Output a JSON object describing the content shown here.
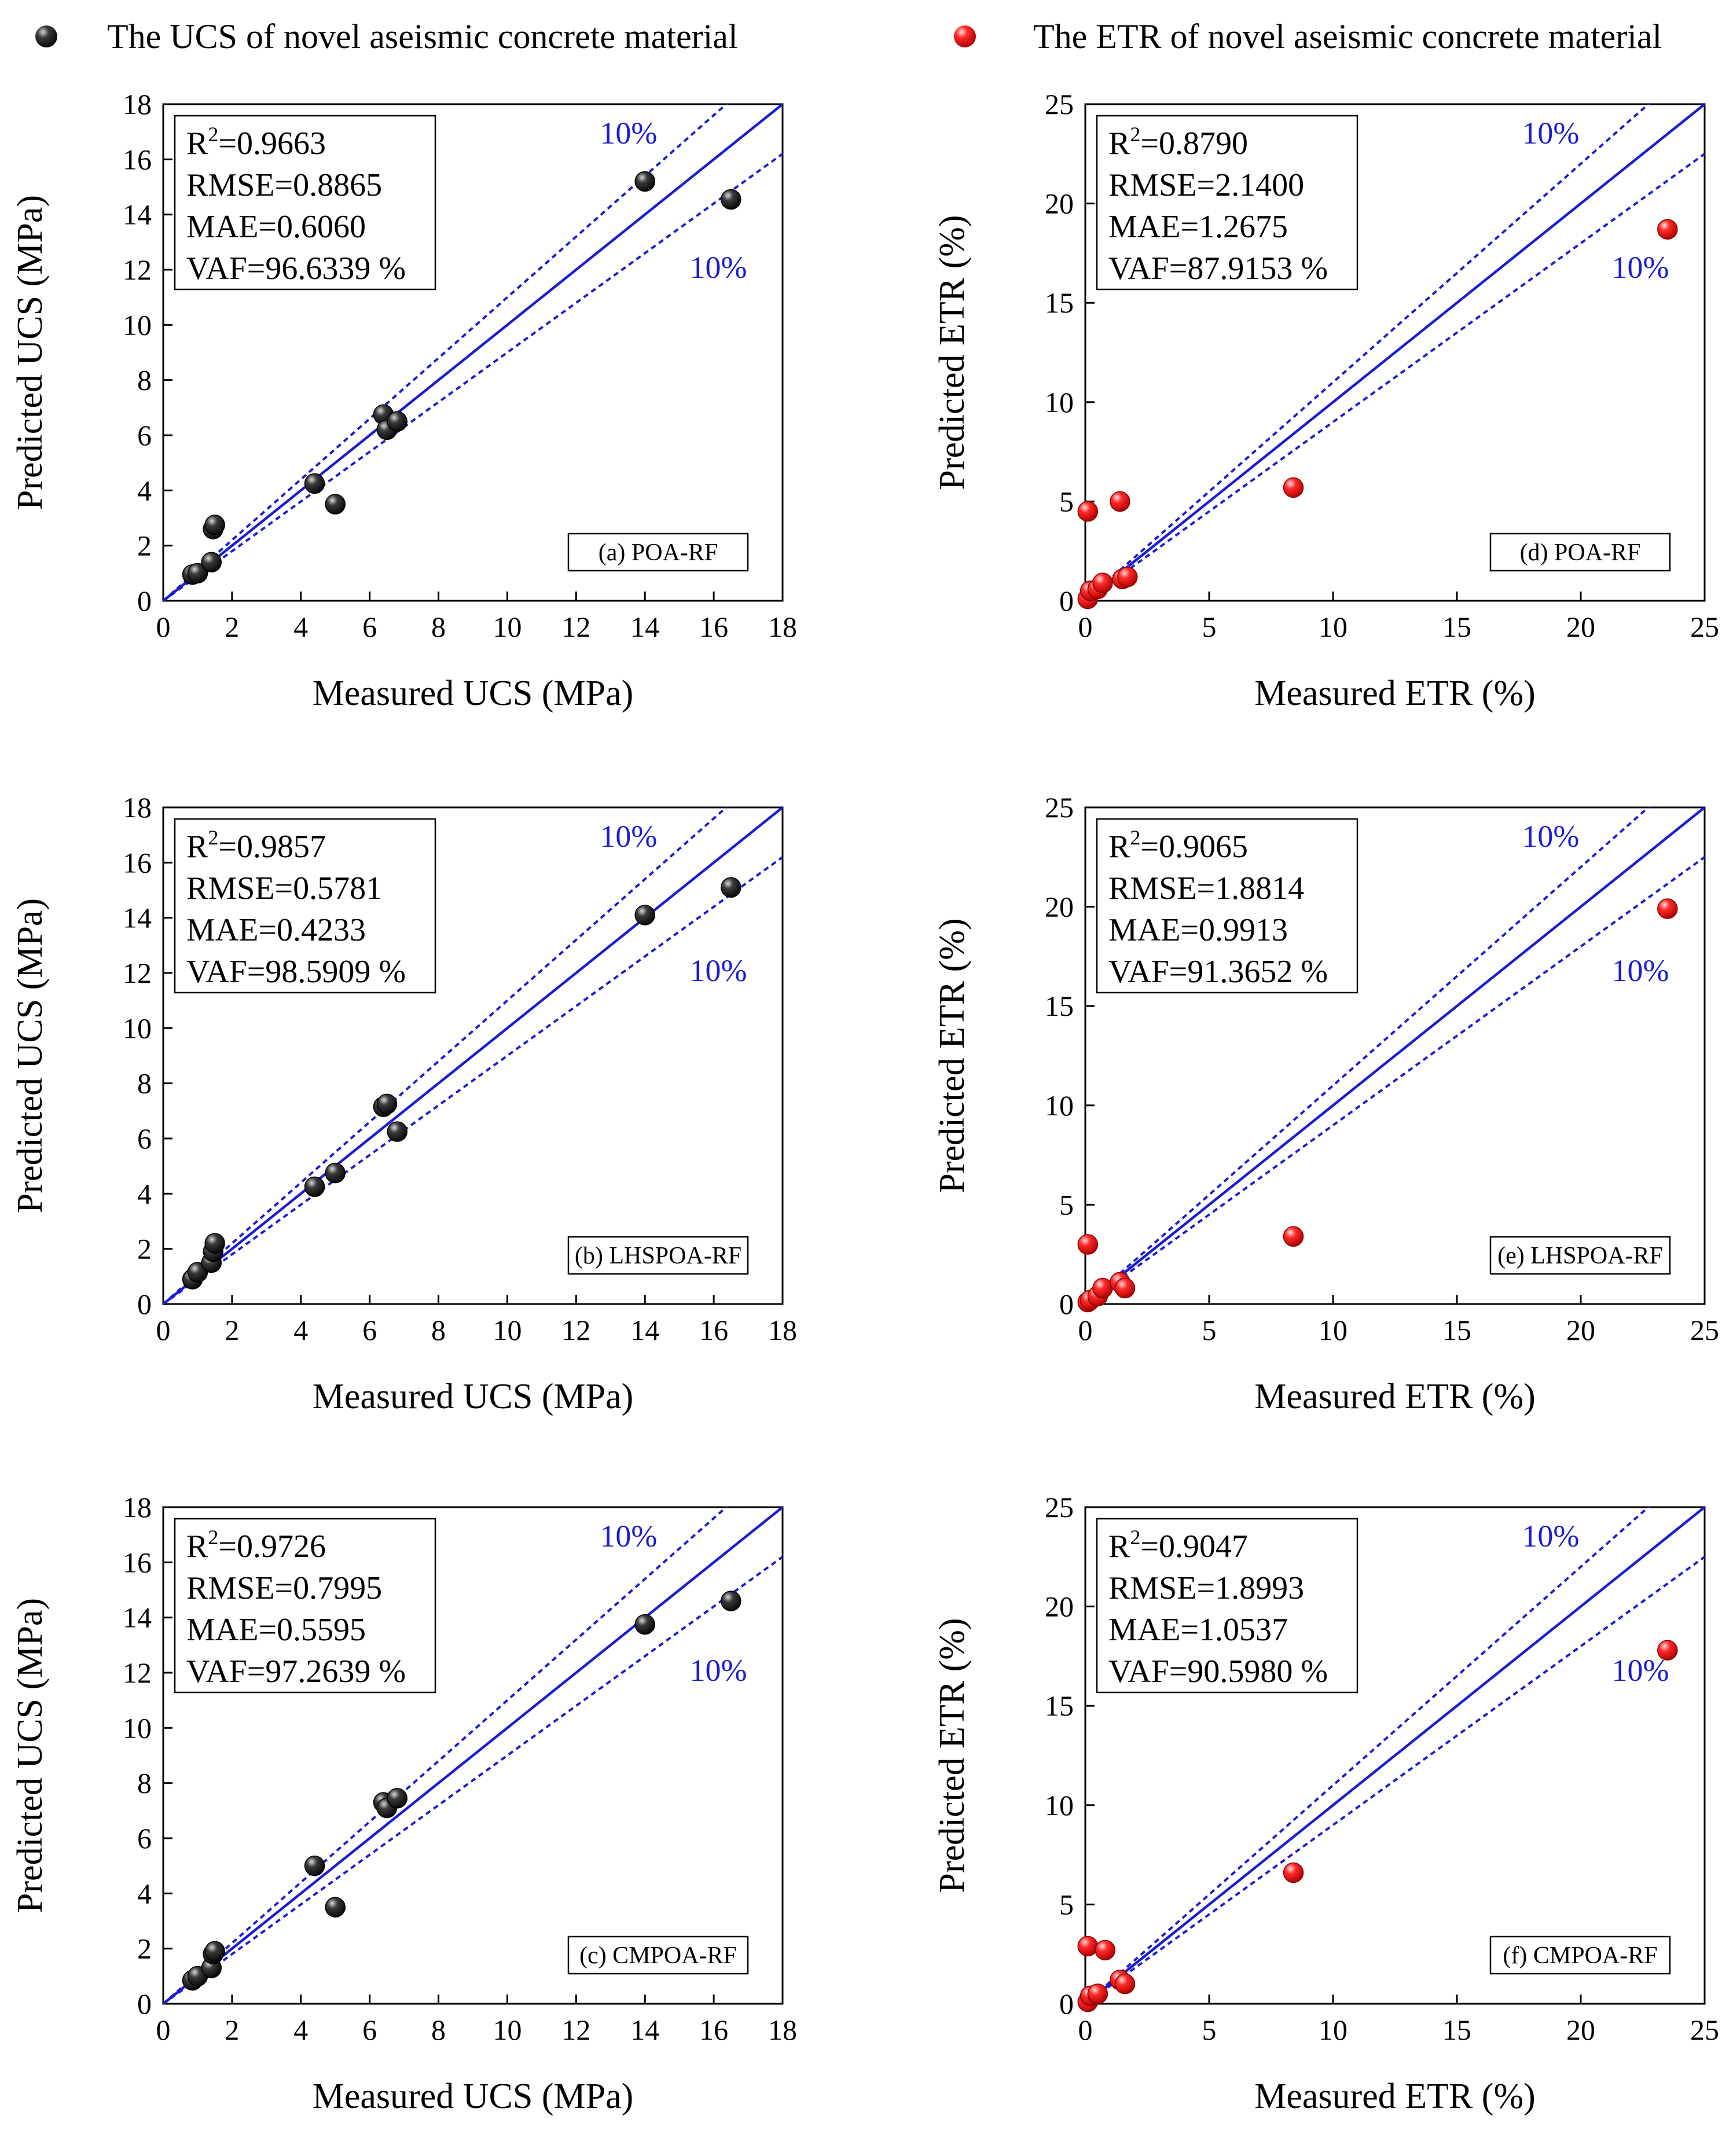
{
  "legend": [
    {
      "label": "The UCS of novel aseismic concrete material",
      "color": "#111111"
    },
    {
      "label": "The ETR of novel aseismic concrete material",
      "color": "#e41a1c"
    }
  ],
  "styles": {
    "line_color": "#1c1cd0",
    "ucs_marker": "#111111",
    "etr_marker": "#e41a1c"
  },
  "chart_data": [
    {
      "type": "scatter",
      "id": "a",
      "model_label": "(a) POA-RF",
      "xlabel": "Measured UCS (MPa)",
      "ylabel": "Predicted UCS (MPa)",
      "xlim": [
        0,
        18
      ],
      "ylim": [
        0,
        18
      ],
      "xticks": [
        "0",
        "2",
        "4",
        "6",
        "8",
        "10",
        "12",
        "14",
        "16",
        "18"
      ],
      "yticks": [
        "0",
        "2",
        "4",
        "6",
        "8",
        "10",
        "12",
        "14",
        "16",
        "18"
      ],
      "band_label_upper": "10%",
      "band_label_lower": "10%",
      "stats": [
        {
          "prefix": "R",
          "sup": "2",
          "suffix": "=0.9663"
        },
        {
          "prefix": "RMSE=0.8865",
          "sup": "",
          "suffix": ""
        },
        {
          "prefix": "MAE=0.6060",
          "sup": "",
          "suffix": ""
        },
        {
          "prefix": "VAF=96.6339 %",
          "sup": "",
          "suffix": ""
        }
      ],
      "marker": "ucs",
      "points": [
        [
          0.85,
          0.95
        ],
        [
          1.0,
          1.0
        ],
        [
          1.4,
          1.4
        ],
        [
          1.45,
          2.6
        ],
        [
          1.5,
          2.75
        ],
        [
          4.4,
          4.25
        ],
        [
          5.0,
          3.5
        ],
        [
          6.4,
          6.75
        ],
        [
          6.5,
          6.2
        ],
        [
          6.8,
          6.5
        ],
        [
          14.0,
          15.2
        ],
        [
          16.5,
          14.55
        ]
      ]
    },
    {
      "type": "scatter",
      "id": "d",
      "model_label": "(d) POA-RF",
      "xlabel": "Measured ETR (%)",
      "ylabel": "Predicted ETR (%)",
      "xlim": [
        0,
        25
      ],
      "ylim": [
        0,
        25
      ],
      "xticks": [
        "0",
        "5",
        "10",
        "15",
        "20",
        "25"
      ],
      "yticks": [
        "0",
        "5",
        "10",
        "15",
        "20",
        "25"
      ],
      "band_label_upper": "10%",
      "band_label_lower": "10%",
      "stats": [
        {
          "prefix": "R",
          "sup": "2",
          "suffix": "=0.8790"
        },
        {
          "prefix": "RMSE=2.1400",
          "sup": "",
          "suffix": ""
        },
        {
          "prefix": "MAE=1.2675",
          "sup": "",
          "suffix": ""
        },
        {
          "prefix": "VAF=87.9153 %",
          "sup": "",
          "suffix": ""
        }
      ],
      "marker": "etr",
      "points": [
        [
          0.1,
          4.5
        ],
        [
          0.1,
          0.1
        ],
        [
          0.2,
          0.5
        ],
        [
          0.5,
          0.6
        ],
        [
          0.7,
          0.9
        ],
        [
          1.4,
          5.0
        ],
        [
          1.5,
          1.1
        ],
        [
          1.7,
          1.2
        ],
        [
          8.4,
          5.7
        ],
        [
          23.5,
          18.7
        ]
      ]
    },
    {
      "type": "scatter",
      "id": "b",
      "model_label": "(b) LHSPOA-RF",
      "xlabel": "Measured UCS (MPa)",
      "ylabel": "Predicted UCS (MPa)",
      "xlim": [
        0,
        18
      ],
      "ylim": [
        0,
        18
      ],
      "xticks": [
        "0",
        "2",
        "4",
        "6",
        "8",
        "10",
        "12",
        "14",
        "16",
        "18"
      ],
      "yticks": [
        "0",
        "2",
        "4",
        "6",
        "8",
        "10",
        "12",
        "14",
        "16",
        "18"
      ],
      "band_label_upper": "10%",
      "band_label_lower": "10%",
      "stats": [
        {
          "prefix": "R",
          "sup": "2",
          "suffix": "=0.9857"
        },
        {
          "prefix": "RMSE=0.5781",
          "sup": "",
          "suffix": ""
        },
        {
          "prefix": "MAE=0.4233",
          "sup": "",
          "suffix": ""
        },
        {
          "prefix": "VAF=98.5909 %",
          "sup": "",
          "suffix": ""
        }
      ],
      "marker": "ucs",
      "points": [
        [
          0.85,
          0.9
        ],
        [
          1.0,
          1.15
        ],
        [
          1.4,
          1.5
        ],
        [
          1.45,
          1.9
        ],
        [
          1.5,
          2.2
        ],
        [
          4.4,
          4.25
        ],
        [
          5.0,
          4.75
        ],
        [
          6.4,
          7.15
        ],
        [
          6.5,
          7.25
        ],
        [
          6.8,
          6.25
        ],
        [
          14.0,
          14.1
        ],
        [
          16.5,
          15.1
        ]
      ]
    },
    {
      "type": "scatter",
      "id": "e",
      "model_label": "(e) LHSPOA-RF",
      "xlabel": "Measured ETR (%)",
      "ylabel": "Predicted ETR (%)",
      "xlim": [
        0,
        25
      ],
      "ylim": [
        0,
        25
      ],
      "xticks": [
        "0",
        "5",
        "10",
        "15",
        "20",
        "25"
      ],
      "yticks": [
        "0",
        "5",
        "10",
        "15",
        "20",
        "25"
      ],
      "band_label_upper": "10%",
      "band_label_lower": "10%",
      "stats": [
        {
          "prefix": "R",
          "sup": "2",
          "suffix": "=0.9065"
        },
        {
          "prefix": "RMSE=1.8814",
          "sup": "",
          "suffix": ""
        },
        {
          "prefix": "MAE=0.9913",
          "sup": "",
          "suffix": ""
        },
        {
          "prefix": "VAF=91.3652 %",
          "sup": "",
          "suffix": ""
        }
      ],
      "marker": "etr",
      "points": [
        [
          0.1,
          3.0
        ],
        [
          0.1,
          0.1
        ],
        [
          0.2,
          0.2
        ],
        [
          0.5,
          0.4
        ],
        [
          0.7,
          0.8
        ],
        [
          1.4,
          1.1
        ],
        [
          1.6,
          0.8
        ],
        [
          8.4,
          3.4
        ],
        [
          23.5,
          19.9
        ]
      ]
    },
    {
      "type": "scatter",
      "id": "c",
      "model_label": "(c) CMPOA-RF",
      "xlabel": "Measured UCS (MPa)",
      "ylabel": "Predicted UCS (MPa)",
      "xlim": [
        0,
        18
      ],
      "ylim": [
        0,
        18
      ],
      "xticks": [
        "0",
        "2",
        "4",
        "6",
        "8",
        "10",
        "12",
        "14",
        "16",
        "18"
      ],
      "yticks": [
        "0",
        "2",
        "4",
        "6",
        "8",
        "10",
        "12",
        "14",
        "16",
        "18"
      ],
      "band_label_upper": "10%",
      "band_label_lower": "10%",
      "stats": [
        {
          "prefix": "R",
          "sup": "2",
          "suffix": "=0.9726"
        },
        {
          "prefix": "RMSE=0.7995",
          "sup": "",
          "suffix": ""
        },
        {
          "prefix": "MAE=0.5595",
          "sup": "",
          "suffix": ""
        },
        {
          "prefix": "VAF=97.2639 %",
          "sup": "",
          "suffix": ""
        }
      ],
      "marker": "ucs",
      "points": [
        [
          0.85,
          0.85
        ],
        [
          1.0,
          1.0
        ],
        [
          1.4,
          1.3
        ],
        [
          1.45,
          1.8
        ],
        [
          1.5,
          1.9
        ],
        [
          4.4,
          5.0
        ],
        [
          5.0,
          3.5
        ],
        [
          6.4,
          7.3
        ],
        [
          6.5,
          7.1
        ],
        [
          6.8,
          7.45
        ],
        [
          14.0,
          13.75
        ],
        [
          16.5,
          14.6
        ]
      ]
    },
    {
      "type": "scatter",
      "id": "f",
      "model_label": "(f) CMPOA-RF",
      "xlabel": "Measured ETR (%)",
      "ylabel": "Predicted ETR (%)",
      "xlim": [
        0,
        25
      ],
      "ylim": [
        0,
        25
      ],
      "xticks": [
        "0",
        "5",
        "10",
        "15",
        "20",
        "25"
      ],
      "yticks": [
        "0",
        "5",
        "10",
        "15",
        "20",
        "25"
      ],
      "band_label_upper": "10%",
      "band_label_lower": "10%",
      "stats": [
        {
          "prefix": "R",
          "sup": "2",
          "suffix": "=0.9047"
        },
        {
          "prefix": "RMSE=1.8993",
          "sup": "",
          "suffix": ""
        },
        {
          "prefix": "MAE=1.0537",
          "sup": "",
          "suffix": ""
        },
        {
          "prefix": "VAF=90.5980 %",
          "sup": "",
          "suffix": ""
        }
      ],
      "marker": "etr",
      "points": [
        [
          0.1,
          2.9
        ],
        [
          0.1,
          0.1
        ],
        [
          0.2,
          0.4
        ],
        [
          0.5,
          0.5
        ],
        [
          0.8,
          2.7
        ],
        [
          1.4,
          1.2
        ],
        [
          1.6,
          1.0
        ],
        [
          8.4,
          6.6
        ],
        [
          23.5,
          17.8
        ]
      ]
    }
  ]
}
